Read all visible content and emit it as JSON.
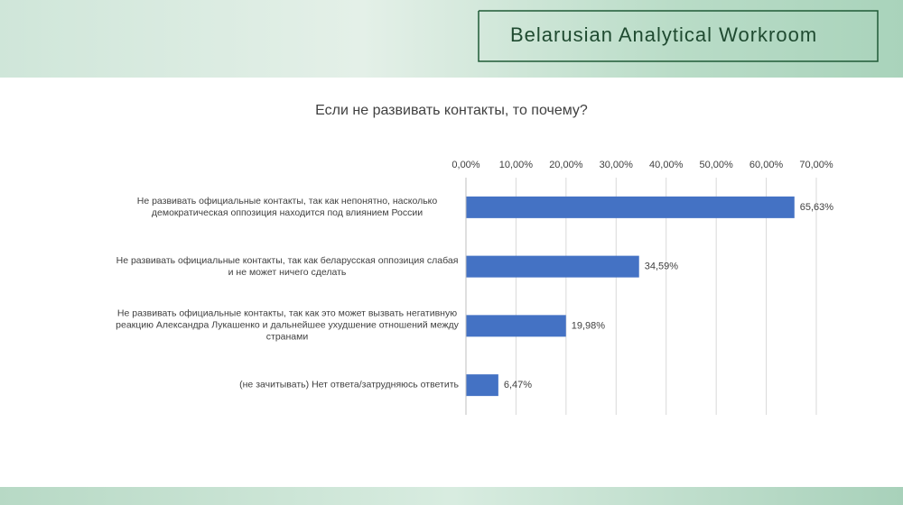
{
  "logo": "Belarusian Analytical Workroom",
  "chart_data": {
    "type": "bar",
    "orientation": "horizontal",
    "title": "Если не развивать контакты, то почему?",
    "categories": [
      "Не развивать официальные контакты, так как непонятно, насколько демократическая оппозиция находится под влиянием России",
      "Не развивать официальные контакты, так как беларусская оппозиция слабая и не может ничего сделать",
      "Не развивать официальные контакты, так как это может вызвать негативную реакцию Александра Лукашенко и дальнейшее ухудшение отношений между странами",
      "(не зачитывать) Нет ответа/затрудняюсь ответить"
    ],
    "values": [
      65.63,
      34.59,
      19.98,
      6.47
    ],
    "value_labels": [
      "65,63%",
      "34,59%",
      "19,98%",
      "6,47%"
    ],
    "color": "#4472c4",
    "xlim": [
      0,
      70
    ],
    "xticks": [
      {
        "value": 0,
        "label": "0,00%"
      },
      {
        "value": 10,
        "label": "10,00%"
      },
      {
        "value": 20,
        "label": "20,00%"
      },
      {
        "value": 30,
        "label": "30,00%"
      },
      {
        "value": 40,
        "label": "40,00%"
      },
      {
        "value": 50,
        "label": "50,00%"
      },
      {
        "value": 60,
        "label": "60,00%"
      },
      {
        "value": 70,
        "label": "70,00%"
      }
    ],
    "grid": true
  }
}
